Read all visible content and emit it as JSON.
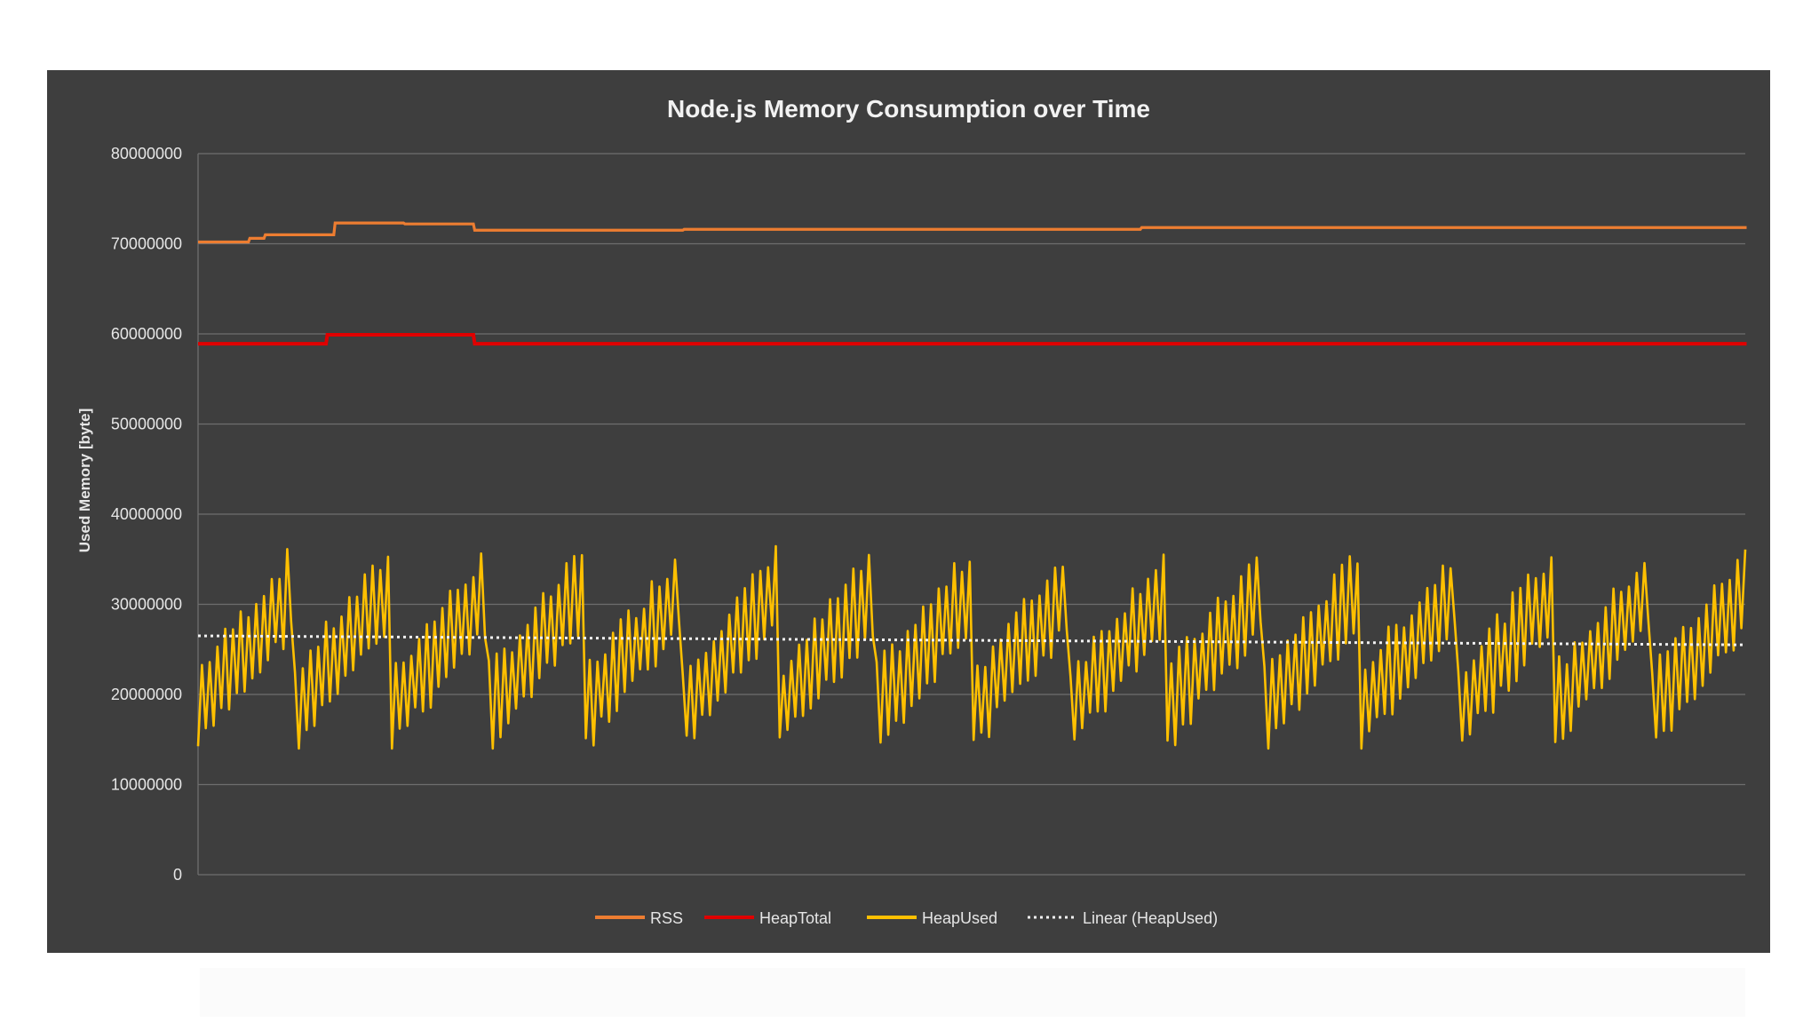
{
  "chart_data": {
    "type": "line",
    "title": "Node.js Memory Consumption over Time",
    "xlabel": "",
    "ylabel": "Used Memory [byte]",
    "ylim": [
      0,
      80000000
    ],
    "y_ticks": [
      "0",
      "10000000",
      "20000000",
      "30000000",
      "40000000",
      "50000000",
      "60000000",
      "70000000",
      "80000000"
    ],
    "x_count": 400,
    "grid": true,
    "legend_position": "bottom",
    "colors": {
      "panel_bg": "#3e3e3e",
      "grid": "#6e6e6e",
      "axis_text": "#e6e6e6",
      "RSS": "#ed7d31",
      "HeapTotal": "#e00000",
      "HeapUsed": "#ffc000",
      "Linear (HeapUsed)": "#f2f2f2"
    },
    "series": [
      {
        "name": "RSS",
        "steps": [
          {
            "from": 0,
            "value": 70200000
          },
          {
            "from": 13,
            "value": 70600000
          },
          {
            "from": 17,
            "value": 71000000
          },
          {
            "from": 35,
            "value": 72300000
          },
          {
            "from": 53,
            "value": 72200000
          },
          {
            "from": 71,
            "value": 71500000
          },
          {
            "from": 125,
            "value": 71600000
          },
          {
            "from": 243,
            "value": 71800000
          },
          {
            "from": 399,
            "value": 71800000
          }
        ]
      },
      {
        "name": "HeapTotal",
        "steps": [
          {
            "from": 0,
            "value": 58900000
          },
          {
            "from": 33,
            "value": 59900000
          },
          {
            "from": 71,
            "value": 58900000
          },
          {
            "from": 399,
            "value": 58900000
          }
        ]
      },
      {
        "name": "HeapUsed",
        "pattern": "sawtooth",
        "min": 14000000,
        "max": 38500000,
        "cycle_length": 25
      },
      {
        "name": "Linear (HeapUsed)",
        "trend": "linear",
        "start": 26500000,
        "end": 25500000
      }
    ],
    "legend": [
      "RSS",
      "HeapTotal",
      "HeapUsed",
      "Linear  (HeapUsed)"
    ]
  }
}
